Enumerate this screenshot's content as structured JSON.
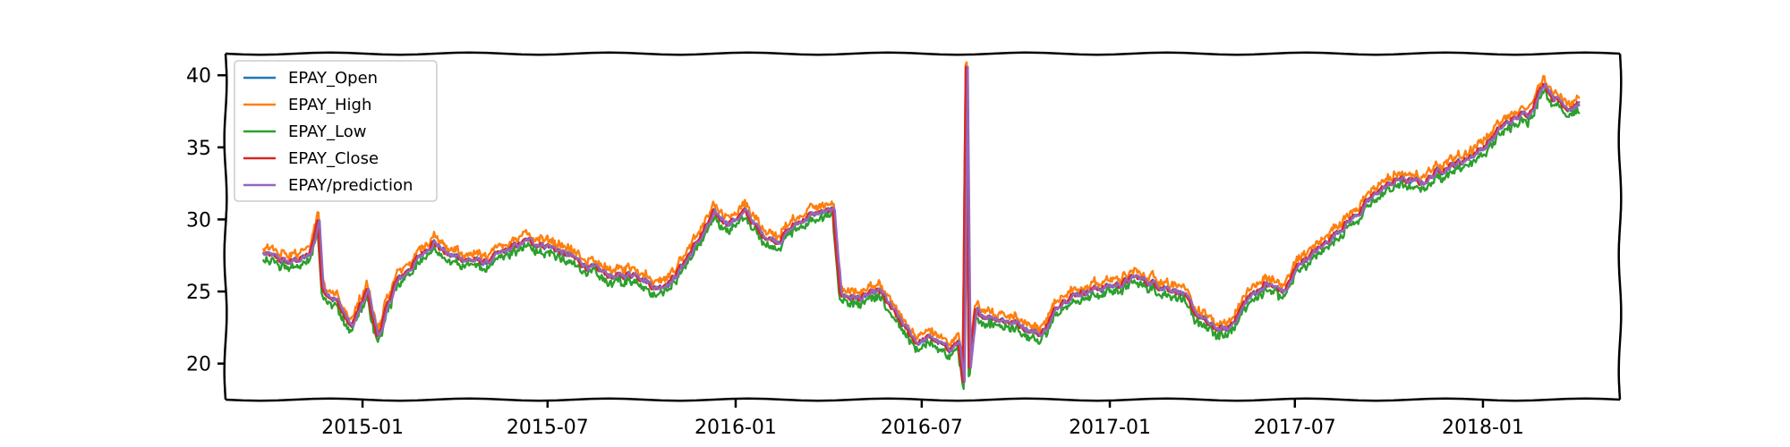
{
  "chart_data": {
    "type": "line",
    "title": "",
    "xlabel": "",
    "ylabel": "",
    "xlim": [
      "2014-08-20",
      "2018-05-15"
    ],
    "ylim": [
      17.5,
      41.5
    ],
    "x_ticks": [
      "2015-01",
      "2015-07",
      "2016-01",
      "2016-07",
      "2017-01",
      "2017-07",
      "2018-01"
    ],
    "y_ticks": [
      20,
      25,
      30,
      35,
      40
    ],
    "grid": false,
    "legend_position": "upper-left",
    "colors": {
      "open": "#1f77b4",
      "high": "#ff7f0e",
      "low": "#2ca02c",
      "close": "#d62728",
      "prediction": "#9467bd"
    },
    "anchors": [
      [
        "2014-09-26",
        27.6
      ],
      [
        "2014-10-20",
        27.0
      ],
      [
        "2014-11-10",
        27.5
      ],
      [
        "2014-11-18",
        30.0
      ],
      [
        "2014-11-22",
        25.2
      ],
      [
        "2014-12-05",
        24.5
      ],
      [
        "2014-12-20",
        22.5
      ],
      [
        "2015-01-05",
        25.0
      ],
      [
        "2015-01-15",
        21.8
      ],
      [
        "2015-02-01",
        25.5
      ],
      [
        "2015-02-20",
        27.0
      ],
      [
        "2015-03-10",
        28.5
      ],
      [
        "2015-03-25",
        27.5
      ],
      [
        "2015-04-15",
        27.2
      ],
      [
        "2015-05-01",
        27.0
      ],
      [
        "2015-05-20",
        27.8
      ],
      [
        "2015-06-10",
        28.5
      ],
      [
        "2015-07-01",
        28.2
      ],
      [
        "2015-07-25",
        27.3
      ],
      [
        "2015-08-15",
        26.5
      ],
      [
        "2015-09-05",
        26.0
      ],
      [
        "2015-09-25",
        26.3
      ],
      [
        "2015-10-15",
        25.2
      ],
      [
        "2015-11-01",
        26.0
      ],
      [
        "2015-11-20",
        28.0
      ],
      [
        "2015-12-10",
        30.3
      ],
      [
        "2015-12-25",
        29.8
      ],
      [
        "2016-01-10",
        30.5
      ],
      [
        "2016-01-25",
        29.0
      ],
      [
        "2016-02-10",
        28.5
      ],
      [
        "2016-02-25",
        29.5
      ],
      [
        "2016-03-10",
        30.2
      ],
      [
        "2016-03-25",
        30.5
      ],
      [
        "2016-04-05",
        30.5
      ],
      [
        "2016-04-12",
        24.8
      ],
      [
        "2016-05-01",
        24.5
      ],
      [
        "2016-05-20",
        25.0
      ],
      [
        "2016-06-10",
        22.8
      ],
      [
        "2016-06-25",
        21.5
      ],
      [
        "2016-07-10",
        21.8
      ],
      [
        "2016-07-25",
        21.0
      ],
      [
        "2016-08-05",
        21.5
      ],
      [
        "2016-08-10",
        18.8
      ],
      [
        "2016-08-13",
        40.5
      ],
      [
        "2016-08-16",
        19.5
      ],
      [
        "2016-08-22",
        23.5
      ],
      [
        "2016-09-10",
        23.2
      ],
      [
        "2016-10-01",
        22.8
      ],
      [
        "2016-10-25",
        22.0
      ],
      [
        "2016-11-15",
        24.5
      ],
      [
        "2016-12-05",
        25.0
      ],
      [
        "2016-12-25",
        25.3
      ],
      [
        "2017-01-10",
        25.5
      ],
      [
        "2017-01-25",
        26.0
      ],
      [
        "2017-02-15",
        25.5
      ],
      [
        "2017-03-10",
        25.0
      ],
      [
        "2017-03-25",
        23.5
      ],
      [
        "2017-04-10",
        22.5
      ],
      [
        "2017-04-25",
        22.3
      ],
      [
        "2017-05-15",
        24.5
      ],
      [
        "2017-06-01",
        25.5
      ],
      [
        "2017-06-20",
        25.0
      ],
      [
        "2017-07-05",
        27.0
      ],
      [
        "2017-07-25",
        28.0
      ],
      [
        "2017-08-15",
        29.5
      ],
      [
        "2017-09-01",
        30.5
      ],
      [
        "2017-09-20",
        32.0
      ],
      [
        "2017-10-10",
        32.8
      ],
      [
        "2017-11-01",
        32.5
      ],
      [
        "2017-11-20",
        33.5
      ],
      [
        "2017-12-10",
        34.0
      ],
      [
        "2018-01-01",
        35.0
      ],
      [
        "2018-01-20",
        36.5
      ],
      [
        "2018-02-01",
        37.0
      ],
      [
        "2018-02-15",
        37.5
      ],
      [
        "2018-03-01",
        39.5
      ],
      [
        "2018-03-10",
        38.5
      ],
      [
        "2018-03-25",
        37.8
      ],
      [
        "2018-04-05",
        38.0
      ]
    ],
    "series": [
      {
        "name": "EPAY_Open",
        "color": "#1f77b4"
      },
      {
        "name": "EPAY_High",
        "color": "#ff7f0e"
      },
      {
        "name": "EPAY_Low",
        "color": "#2ca02c"
      },
      {
        "name": "EPAY_Close",
        "color": "#d62728"
      },
      {
        "name": "EPAY/prediction",
        "color": "#9467bd"
      }
    ]
  }
}
